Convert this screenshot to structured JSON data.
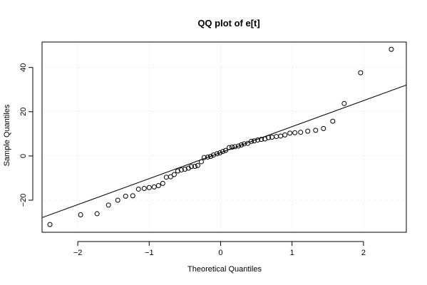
{
  "chart_data": {
    "type": "scatter",
    "title": "QQ plot of e[t]",
    "xlabel": "Theoretical Quantiles",
    "ylabel": "Sample Quantiles",
    "xlim": [
      -2.5,
      2.6
    ],
    "ylim": [
      -34.5,
      51.5
    ],
    "x_ticks": [
      -2,
      -1,
      0,
      1,
      2
    ],
    "x_tick_labels": [
      "−2",
      "−1",
      "0",
      "1",
      "2"
    ],
    "y_ticks": [
      -20,
      0,
      20,
      40
    ],
    "y_tick_labels": [
      "−20",
      "0",
      "20",
      "40"
    ],
    "grid": true,
    "grid_style": "dotted",
    "point_style": "open-circle",
    "reference_line": {
      "slope": 11.75,
      "intercept": 1.5
    },
    "points": [
      {
        "x": -2.39,
        "y": -31.0
      },
      {
        "x": -1.96,
        "y": -26.6
      },
      {
        "x": -1.73,
        "y": -26.1
      },
      {
        "x": -1.57,
        "y": -22.2
      },
      {
        "x": -1.44,
        "y": -20.0
      },
      {
        "x": -1.33,
        "y": -18.2
      },
      {
        "x": -1.23,
        "y": -18.0
      },
      {
        "x": -1.15,
        "y": -15.0
      },
      {
        "x": -1.07,
        "y": -14.7
      },
      {
        "x": -1.0,
        "y": -14.3
      },
      {
        "x": -0.93,
        "y": -14.0
      },
      {
        "x": -0.87,
        "y": -13.4
      },
      {
        "x": -0.81,
        "y": -12.4
      },
      {
        "x": -0.76,
        "y": -9.6
      },
      {
        "x": -0.7,
        "y": -9.4
      },
      {
        "x": -0.65,
        "y": -8.4
      },
      {
        "x": -0.6,
        "y": -6.8
      },
      {
        "x": -0.55,
        "y": -6.3
      },
      {
        "x": -0.5,
        "y": -6.0
      },
      {
        "x": -0.45,
        "y": -5.5
      },
      {
        "x": -0.41,
        "y": -4.8
      },
      {
        "x": -0.36,
        "y": -4.7
      },
      {
        "x": -0.32,
        "y": -4.3
      },
      {
        "x": -0.27,
        "y": -2.6
      },
      {
        "x": -0.23,
        "y": -0.7
      },
      {
        "x": -0.18,
        "y": -0.5
      },
      {
        "x": -0.14,
        "y": -0.2
      },
      {
        "x": -0.1,
        "y": 0.4
      },
      {
        "x": -0.05,
        "y": 1.0
      },
      {
        "x": -0.01,
        "y": 1.4
      },
      {
        "x": 0.03,
        "y": 2.0
      },
      {
        "x": 0.07,
        "y": 2.5
      },
      {
        "x": 0.12,
        "y": 3.8
      },
      {
        "x": 0.16,
        "y": 4.0
      },
      {
        "x": 0.2,
        "y": 4.2
      },
      {
        "x": 0.25,
        "y": 4.5
      },
      {
        "x": 0.29,
        "y": 5.0
      },
      {
        "x": 0.33,
        "y": 5.5
      },
      {
        "x": 0.38,
        "y": 5.7
      },
      {
        "x": 0.43,
        "y": 6.6
      },
      {
        "x": 0.47,
        "y": 6.8
      },
      {
        "x": 0.52,
        "y": 7.2
      },
      {
        "x": 0.57,
        "y": 7.5
      },
      {
        "x": 0.62,
        "y": 7.7
      },
      {
        "x": 0.67,
        "y": 8.3
      },
      {
        "x": 0.72,
        "y": 8.5
      },
      {
        "x": 0.78,
        "y": 8.8
      },
      {
        "x": 0.84,
        "y": 9.0
      },
      {
        "x": 0.9,
        "y": 9.5
      },
      {
        "x": 0.97,
        "y": 10.3
      },
      {
        "x": 1.04,
        "y": 10.5
      },
      {
        "x": 1.12,
        "y": 10.7
      },
      {
        "x": 1.22,
        "y": 11.2
      },
      {
        "x": 1.33,
        "y": 11.6
      },
      {
        "x": 1.44,
        "y": 12.4
      },
      {
        "x": 1.57,
        "y": 15.7
      },
      {
        "x": 1.73,
        "y": 23.7
      },
      {
        "x": 1.96,
        "y": 37.6
      },
      {
        "x": 2.39,
        "y": 48.2
      }
    ]
  }
}
